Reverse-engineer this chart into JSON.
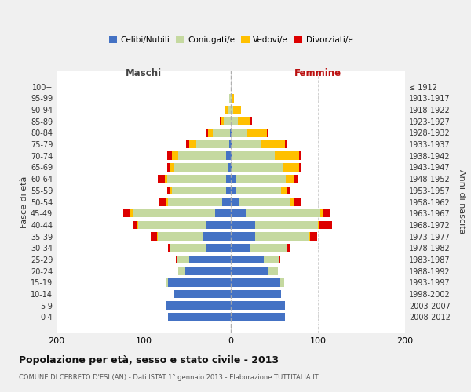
{
  "age_groups": [
    "0-4",
    "5-9",
    "10-14",
    "15-19",
    "20-24",
    "25-29",
    "30-34",
    "35-39",
    "40-44",
    "45-49",
    "50-54",
    "55-59",
    "60-64",
    "65-69",
    "70-74",
    "75-79",
    "80-84",
    "85-89",
    "90-94",
    "95-99",
    "100+"
  ],
  "birth_years": [
    "2008-2012",
    "2003-2007",
    "1998-2002",
    "1993-1997",
    "1988-1992",
    "1983-1987",
    "1978-1982",
    "1973-1977",
    "1968-1972",
    "1963-1967",
    "1958-1962",
    "1953-1957",
    "1948-1952",
    "1943-1947",
    "1938-1942",
    "1933-1937",
    "1928-1932",
    "1923-1927",
    "1918-1922",
    "1913-1917",
    "≤ 1912"
  ],
  "m_cel": [
    72,
    75,
    65,
    72,
    52,
    48,
    28,
    32,
    28,
    18,
    10,
    5,
    5,
    3,
    5,
    2,
    1,
    0,
    0,
    0,
    0
  ],
  "m_con": [
    0,
    0,
    0,
    3,
    8,
    14,
    42,
    52,
    78,
    95,
    62,
    63,
    68,
    62,
    55,
    38,
    20,
    8,
    4,
    2,
    0
  ],
  "m_ved": [
    0,
    0,
    0,
    0,
    0,
    0,
    0,
    1,
    1,
    2,
    2,
    2,
    3,
    5,
    8,
    8,
    5,
    3,
    2,
    0,
    0
  ],
  "m_div": [
    0,
    0,
    0,
    0,
    0,
    1,
    2,
    7,
    5,
    8,
    8,
    3,
    8,
    3,
    5,
    3,
    2,
    2,
    0,
    0,
    0
  ],
  "f_nub": [
    62,
    62,
    58,
    57,
    42,
    38,
    22,
    28,
    28,
    18,
    10,
    5,
    5,
    2,
    2,
    2,
    1,
    0,
    0,
    0,
    0
  ],
  "f_con": [
    0,
    0,
    0,
    4,
    12,
    18,
    42,
    62,
    72,
    85,
    58,
    53,
    58,
    58,
    48,
    32,
    18,
    8,
    3,
    1,
    0
  ],
  "f_ved": [
    0,
    0,
    0,
    0,
    0,
    0,
    1,
    1,
    2,
    3,
    5,
    7,
    9,
    18,
    28,
    28,
    22,
    14,
    9,
    3,
    0
  ],
  "f_div": [
    0,
    0,
    0,
    0,
    0,
    1,
    3,
    8,
    14,
    8,
    8,
    3,
    5,
    3,
    3,
    3,
    2,
    2,
    0,
    0,
    0
  ],
  "colors": {
    "celibe": "#4472c4",
    "coniugato": "#c5d9a0",
    "vedovo": "#ffc000",
    "divorziato": "#dd0000"
  },
  "xlim": 200,
  "title": "Popolazione per età, sesso e stato civile - 2013",
  "subtitle": "COMUNE DI CERRETO D'ESI (AN) - Dati ISTAT 1° gennaio 2013 - Elaborazione TUTTITALIA.IT",
  "ylabel_left": "Fasce di età",
  "ylabel_right": "Anni di nascita",
  "legend_labels": [
    "Celibi/Nubili",
    "Coniugati/e",
    "Vedovi/e",
    "Divorziati/e"
  ],
  "maschi_label": "Maschi",
  "femmine_label": "Femmine",
  "bg_color": "#f0f0f0",
  "plot_bg": "#ffffff"
}
